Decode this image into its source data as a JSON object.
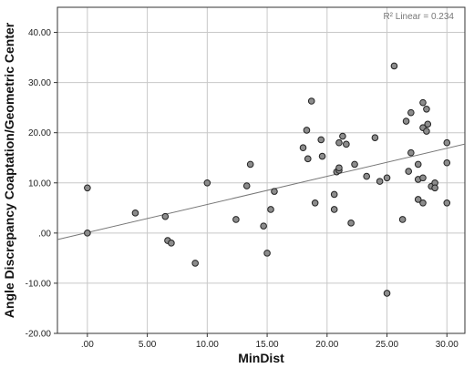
{
  "chart_data": {
    "type": "scatter",
    "xlabel": "MinDist",
    "ylabel": "Angle Discrepancy Coaptation/Geometric Center",
    "xlim": [
      -2.5,
      31.5
    ],
    "ylim": [
      -20,
      45
    ],
    "x_ticks": [
      0,
      5,
      10,
      15,
      20,
      25,
      30
    ],
    "x_tick_labels": [
      ".00",
      "5.00",
      "10.00",
      "15.00",
      "20.00",
      "25.00",
      "30.00"
    ],
    "y_ticks": [
      -20,
      -10,
      0,
      10,
      20,
      30,
      40
    ],
    "y_tick_labels": [
      "-20.00",
      "-10.00",
      ".00",
      "10.00",
      "20.00",
      "30.00",
      "40.00"
    ],
    "grid": true,
    "annotation": "R² Linear = 0.234",
    "fit_line": {
      "intercept": 0.1,
      "slope": 0.56
    },
    "points": [
      [
        0.0,
        9.0
      ],
      [
        0.0,
        0.0
      ],
      [
        4.0,
        4.0
      ],
      [
        6.5,
        3.3
      ],
      [
        6.7,
        -1.5
      ],
      [
        7.0,
        -2.0
      ],
      [
        9.0,
        -6.0
      ],
      [
        10.0,
        10.0
      ],
      [
        12.4,
        2.7
      ],
      [
        13.3,
        9.4
      ],
      [
        13.6,
        13.7
      ],
      [
        14.7,
        1.4
      ],
      [
        15.0,
        -4.0
      ],
      [
        15.3,
        4.7
      ],
      [
        15.6,
        8.3
      ],
      [
        18.0,
        17.0
      ],
      [
        18.3,
        20.5
      ],
      [
        18.4,
        14.8
      ],
      [
        18.7,
        26.3
      ],
      [
        19.0,
        6.0
      ],
      [
        19.5,
        18.6
      ],
      [
        19.6,
        15.3
      ],
      [
        20.6,
        7.7
      ],
      [
        20.6,
        4.7
      ],
      [
        20.8,
        12.2
      ],
      [
        21.0,
        18.0
      ],
      [
        21.0,
        12.5
      ],
      [
        21.0,
        13.0
      ],
      [
        21.3,
        19.3
      ],
      [
        21.6,
        17.7
      ],
      [
        22.0,
        2.0
      ],
      [
        22.3,
        13.7
      ],
      [
        23.3,
        11.3
      ],
      [
        24.0,
        19.0
      ],
      [
        24.4,
        10.3
      ],
      [
        25.0,
        11.0
      ],
      [
        25.0,
        -12.0
      ],
      [
        25.6,
        33.3
      ],
      [
        26.3,
        2.7
      ],
      [
        26.6,
        22.3
      ],
      [
        26.8,
        12.3
      ],
      [
        27.0,
        24.0
      ],
      [
        27.0,
        16.0
      ],
      [
        27.6,
        10.7
      ],
      [
        27.6,
        13.7
      ],
      [
        27.6,
        6.7
      ],
      [
        28.0,
        26.0
      ],
      [
        28.0,
        21.0
      ],
      [
        28.0,
        11.0
      ],
      [
        28.0,
        6.0
      ],
      [
        28.3,
        24.7
      ],
      [
        28.3,
        20.3
      ],
      [
        28.4,
        21.7
      ],
      [
        28.7,
        9.3
      ],
      [
        29.0,
        10.0
      ],
      [
        29.0,
        9.0
      ],
      [
        30.0,
        18.0
      ],
      [
        30.0,
        14.0
      ],
      [
        30.0,
        6.0
      ]
    ]
  }
}
